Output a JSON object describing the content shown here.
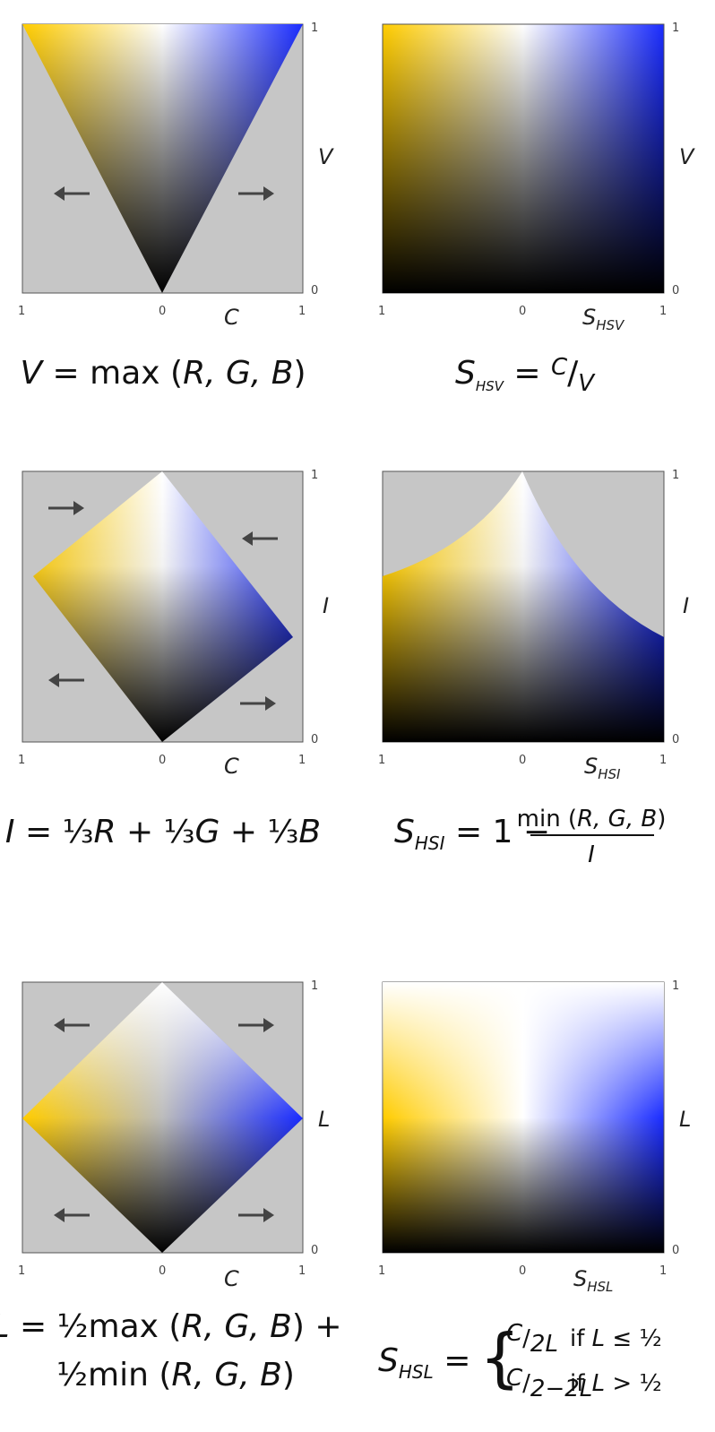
{
  "panels": {
    "hsv_chroma": {
      "axis_label": "V",
      "x_label": "C",
      "y_ticks": [
        "1",
        "0"
      ],
      "x_ticks": [
        "1",
        "0",
        "1"
      ]
    },
    "hsv_saturation": {
      "axis_label": "V",
      "x_label_main": "S",
      "x_label_sub": "HSV",
      "y_ticks": [
        "1",
        "0"
      ],
      "x_ticks": [
        "1",
        "0",
        "1"
      ]
    },
    "hsi_chroma": {
      "axis_label": "I",
      "x_label": "C",
      "y_ticks": [
        "1",
        "0"
      ],
      "x_ticks": [
        "1",
        "0",
        "1"
      ]
    },
    "hsi_saturation": {
      "axis_label": "I",
      "x_label_main": "S",
      "x_label_sub": "HSI",
      "y_ticks": [
        "1",
        "0"
      ],
      "x_ticks": [
        "1",
        "0",
        "1"
      ]
    },
    "hsl_chroma": {
      "axis_label": "L",
      "x_label": "C",
      "y_ticks": [
        "1",
        "0"
      ],
      "x_ticks": [
        "1",
        "0",
        "1"
      ]
    },
    "hsl_saturation": {
      "axis_label": "L",
      "x_label_main": "S",
      "x_label_sub": "HSL",
      "y_ticks": [
        "1",
        "0"
      ],
      "x_ticks": [
        "1",
        "0",
        "1"
      ]
    }
  },
  "formulas": {
    "v": {
      "lhs": "V",
      "eq": " = max (",
      "args": "R, G, B",
      "close": ")"
    },
    "s_hsv": {
      "lhs": "S",
      "lhs_sub": "HSV",
      "eq": " = ",
      "num": "C",
      "slash": "/",
      "den": "V"
    },
    "i": {
      "lhs": "I",
      "eq": " = ",
      "t1": "⅓",
      "r": "R",
      "plus1": " + ",
      "t2": "⅓",
      "g": "G",
      "plus2": " + ",
      "t3": "⅓",
      "b": "B"
    },
    "s_hsi": {
      "lhs": "S",
      "lhs_sub": "HSI",
      "eq": " = 1 − ",
      "num_pre": "min (",
      "num_args": "R, G, B",
      "num_close": ")",
      "den": "I"
    },
    "l": {
      "line1_lhs": "L",
      "line1_eq": " = ",
      "line1_half": "½",
      "line1_rest": "max (",
      "line1_args": "R, G, B",
      "line1_close": ") +",
      "line2_half": "½",
      "line2_rest": "min (",
      "line2_args": "R, G, B",
      "line2_close": ")"
    },
    "s_hsl": {
      "lhs": "S",
      "lhs_sub": "HSL",
      "eq": " = ",
      "brace": "{",
      "case1_num": "C",
      "case1_slash": "/",
      "case1_den": "2L",
      "case1_cond_if": "if ",
      "case1_cond_var": "L",
      "case1_cond_rel": " ≤ ½",
      "case2_num": "C",
      "case2_slash": "/",
      "case2_den": "2−2L",
      "case2_cond_if": "if ",
      "case2_cond_var": "L",
      "case2_cond_rel": " > ½"
    }
  },
  "colors": {
    "background_panel": "#c6c6c6",
    "yellow": "#ffcc00",
    "blue": "#1a2cff",
    "white": "#ffffff",
    "black": "#000000",
    "arrow": "#444444"
  }
}
